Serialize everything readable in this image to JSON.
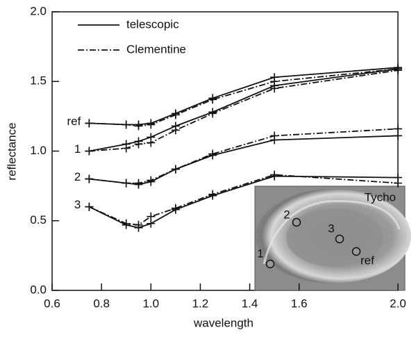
{
  "chart_data": {
    "type": "line",
    "x_label": "wavelength",
    "y_label": "reflectance",
    "x": [
      0.75,
      0.9,
      0.95,
      1.0,
      1.1,
      1.25,
      1.5,
      2.0
    ],
    "xlim": [
      0.6,
      2.0
    ],
    "xticks": [
      0.6,
      0.8,
      {
        "value": 1,
        "label": "1.0"
      },
      1.2,
      1.4,
      1.6,
      {
        "value": 2,
        "label": "2.0"
      }
    ],
    "ylim": [
      0,
      2
    ],
    "yticks": [
      {
        "value": 0,
        "label": "0.0"
      },
      0.5,
      {
        "value": 1,
        "label": "1.0"
      },
      1.5,
      {
        "value": 2,
        "label": "2.0"
      }
    ],
    "line_labels": [
      "ref",
      "1",
      "2",
      "3"
    ],
    "series": [
      {
        "name": "telescopic",
        "color": "#111111",
        "dash": "solid",
        "lines": [
          [
            1.2,
            1.19,
            1.19,
            1.2,
            1.27,
            1.38,
            1.53,
            1.6
          ],
          [
            1.0,
            1.05,
            1.07,
            1.1,
            1.18,
            1.28,
            1.47,
            1.59
          ],
          [
            0.8,
            0.77,
            0.76,
            0.78,
            0.87,
            0.97,
            1.08,
            1.11
          ],
          [
            0.6,
            0.47,
            0.45,
            0.48,
            0.58,
            0.68,
            0.82,
            0.81
          ]
        ]
      },
      {
        "name": "Clementine",
        "color": "#111111",
        "dash": "dashdot",
        "lines": [
          [
            1.2,
            1.19,
            1.18,
            1.19,
            1.26,
            1.37,
            1.5,
            1.59
          ],
          [
            1.0,
            1.02,
            1.05,
            1.06,
            1.15,
            1.27,
            1.45,
            1.58
          ],
          [
            0.8,
            0.77,
            0.77,
            0.79,
            0.87,
            0.98,
            1.11,
            1.16
          ],
          [
            0.6,
            0.48,
            0.47,
            0.53,
            0.59,
            0.69,
            0.83,
            0.77
          ]
        ]
      }
    ],
    "legend": "upper left",
    "inset": {
      "title": "Tycho",
      "point_labels": [
        "1",
        "2",
        "3",
        "ref"
      ]
    }
  }
}
